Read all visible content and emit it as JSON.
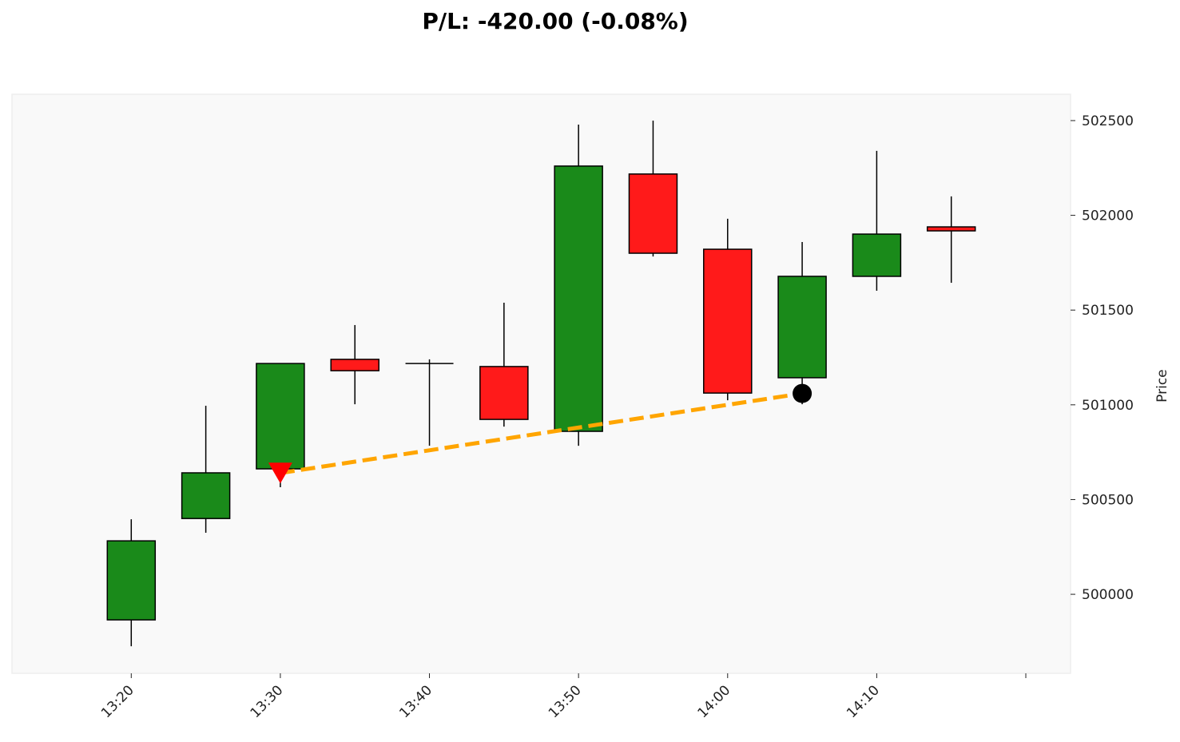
{
  "chart_data": {
    "type": "candlestick",
    "title": "P/L: -420.00 (-0.08%)",
    "xlabel": "",
    "ylabel": "Price",
    "x_ticks": [
      "13:20",
      "13:30",
      "13:40",
      "13:50",
      "14:00",
      "14:10",
      ""
    ],
    "y_ticks": [
      500000,
      500500,
      501000,
      501500,
      502000,
      502500
    ],
    "xlim": [
      "13:12",
      "14:23"
    ],
    "ylim": [
      499583,
      502639
    ],
    "grid": false,
    "colors": {
      "up": "#1a8a1a",
      "down": "#ff1a1a",
      "trade_line": "#ffa500",
      "background": "#f9f9f9"
    },
    "candles": [
      {
        "time": "13:20",
        "open": 499865,
        "high": 500396,
        "low": 499726,
        "close": 500282
      },
      {
        "time": "13:25",
        "open": 500400,
        "high": 500995,
        "low": 500325,
        "close": 500641
      },
      {
        "time": "13:30",
        "open": 500662,
        "high": 501218,
        "low": 500565,
        "close": 501218
      },
      {
        "time": "13:35",
        "open": 501240,
        "high": 501421,
        "low": 501003,
        "close": 501180
      },
      {
        "time": "13:40",
        "open": 501218,
        "high": 501240,
        "low": 500784,
        "close": 501218
      },
      {
        "time": "13:45",
        "open": 501202,
        "high": 501539,
        "low": 500885,
        "close": 500923
      },
      {
        "time": "13:50",
        "open": 500860,
        "high": 502479,
        "low": 500784,
        "close": 502260
      },
      {
        "time": "13:55",
        "open": 502218,
        "high": 502500,
        "low": 501783,
        "close": 501800
      },
      {
        "time": "14:00",
        "open": 501821,
        "high": 501982,
        "low": 501024,
        "close": 501062
      },
      {
        "time": "14:05",
        "open": 501143,
        "high": 501859,
        "low": 501003,
        "close": 501678
      },
      {
        "time": "14:10",
        "open": 501678,
        "high": 502340,
        "low": 501602,
        "close": 501901
      },
      {
        "time": "14:15",
        "open": 501939,
        "high": 502100,
        "low": 501644,
        "close": 501918
      }
    ],
    "trade": {
      "entry": {
        "time": "13:30",
        "price": 500640,
        "marker": "triangle-down",
        "color": "#ff0000"
      },
      "exit": {
        "time": "14:05",
        "price": 501060,
        "marker": "circle",
        "color": "#000000"
      }
    }
  }
}
